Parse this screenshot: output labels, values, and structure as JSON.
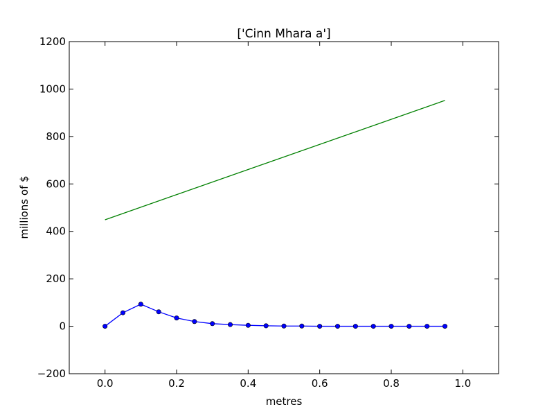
{
  "chart_data": {
    "type": "line",
    "title": "['Cinn Mhara a']",
    "xlabel": "metres",
    "ylabel": "millions of $",
    "xlim": [
      -0.1,
      1.1
    ],
    "ylim": [
      -200,
      1200
    ],
    "xticks": [
      0.0,
      0.2,
      0.4,
      0.6,
      0.8,
      1.0
    ],
    "xtick_labels": [
      "0.0",
      "0.2",
      "0.4",
      "0.6",
      "0.8",
      "1.0"
    ],
    "yticks": [
      -200,
      0,
      200,
      400,
      600,
      800,
      1000,
      1200
    ],
    "ytick_labels": [
      "−200",
      "0",
      "200",
      "400",
      "600",
      "800",
      "1000",
      "1200"
    ],
    "grid": false,
    "series": [
      {
        "color": "#0000ff",
        "marker": "circle",
        "x": [
          0.0,
          0.05,
          0.1,
          0.15,
          0.2,
          0.25,
          0.3,
          0.35,
          0.4,
          0.45,
          0.5,
          0.55,
          0.6,
          0.65,
          0.7,
          0.75,
          0.8,
          0.85,
          0.9,
          0.95
        ],
        "y": [
          0,
          57,
          93,
          61,
          35,
          20,
          11,
          7,
          4,
          2,
          1,
          1,
          0,
          0,
          0,
          0,
          0,
          0,
          0,
          0
        ]
      },
      {
        "color": "#008000",
        "marker": "none",
        "x": [
          0.0,
          0.95
        ],
        "y": [
          449,
          952
        ]
      }
    ]
  }
}
